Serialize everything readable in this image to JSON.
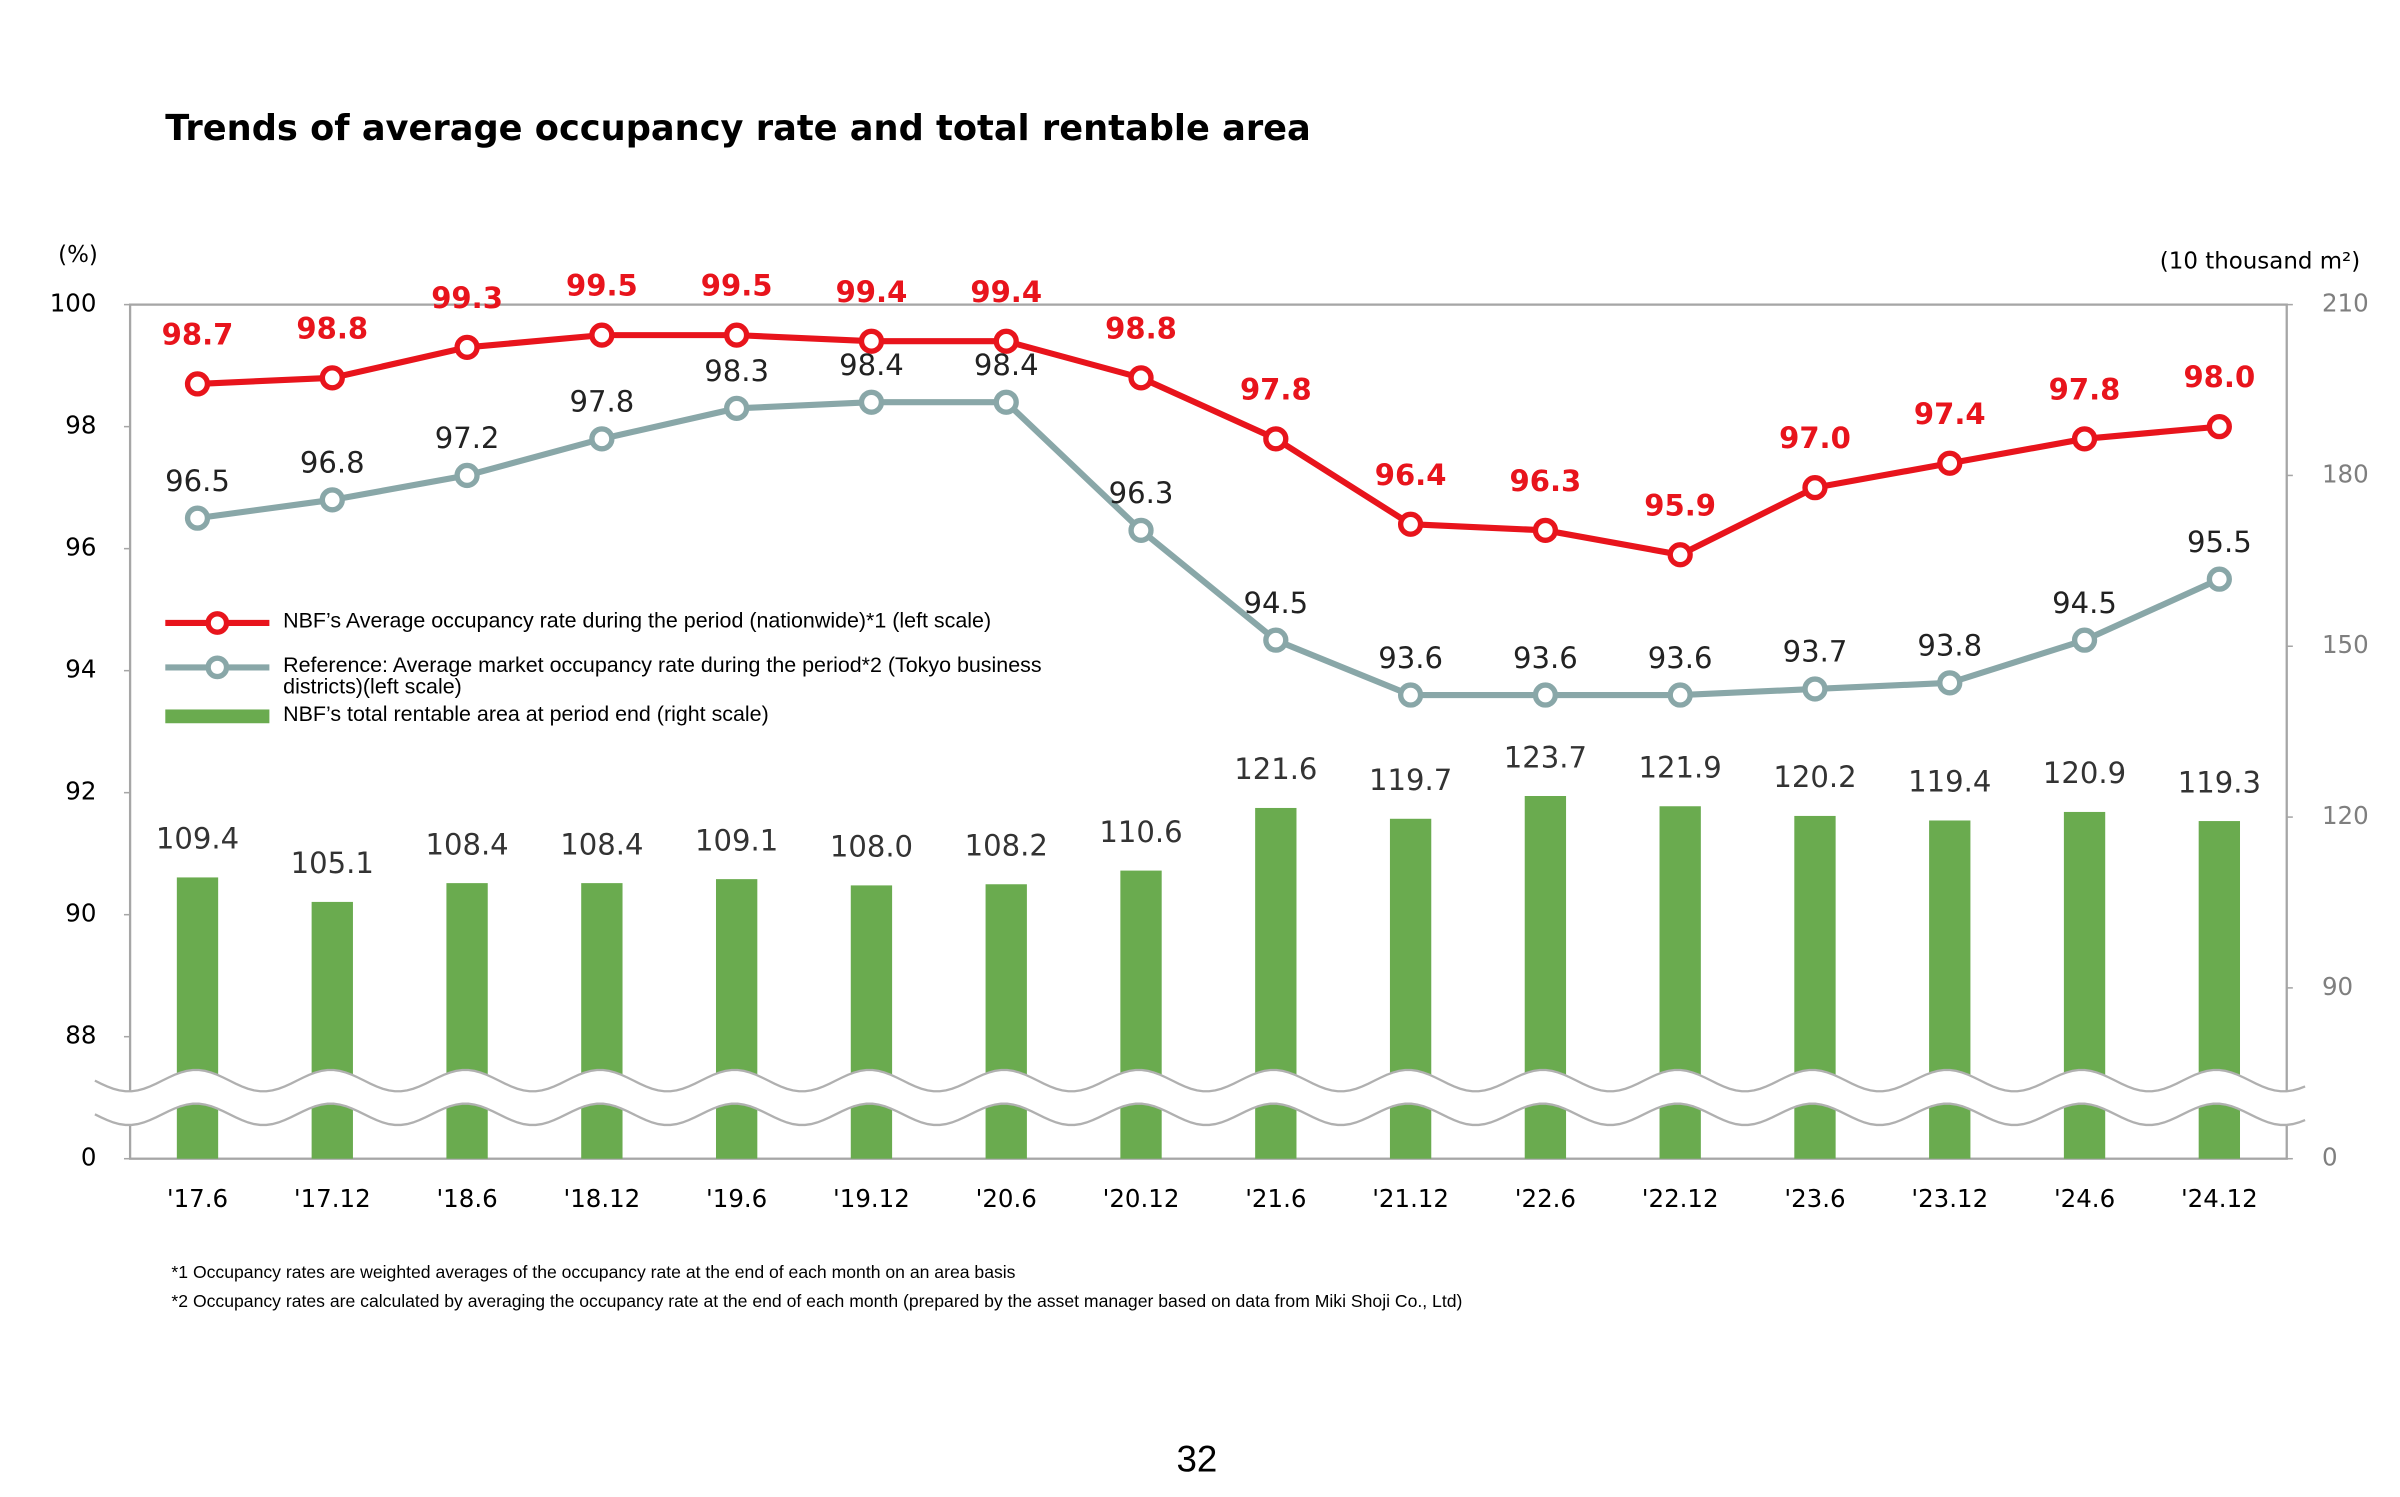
{
  "chart_data": {
    "type": "combo",
    "title": "Trends of average occupancy rate and total rentable area",
    "y_unit": "(%)",
    "y2_unit": "(10 thousand m²)",
    "categories": [
      "'17.6",
      "'17.12",
      "'18.6",
      "'18.12",
      "'19.6",
      "'19.12",
      "'20.6",
      "'20.12",
      "'21.6",
      "'21.12",
      "'22.6",
      "'22.12",
      "'23.6",
      "'23.12",
      "'24.6",
      "'24.12"
    ],
    "ylim": [
      0,
      100
    ],
    "yticks": [
      0,
      88,
      90,
      92,
      94,
      96,
      98,
      100
    ],
    "y2lim": [
      0,
      210
    ],
    "y2ticks": [
      0,
      90,
      120,
      150,
      180,
      210
    ],
    "axis_break": true,
    "series": [
      {
        "name": "NBF’s Average occupancy rate during the period (nationwide)*1  (left scale)",
        "type": "line",
        "color": "#e8141c",
        "values": [
          98.7,
          98.8,
          99.3,
          99.5,
          99.5,
          99.4,
          99.4,
          98.8,
          97.8,
          96.4,
          96.3,
          95.9,
          97.0,
          97.4,
          97.8,
          98.0
        ],
        "value_labels": [
          "98.7",
          "98.8",
          "99.3",
          "99.5",
          "99.5",
          "99.4",
          "99.4",
          "98.8",
          "97.8",
          "96.4",
          "96.3",
          "95.9",
          "97.0",
          "97.4",
          "97.8",
          "98.0"
        ]
      },
      {
        "name": "Reference: Average market occupancy rate during the period*2 (Tokyo business districts)(left scale)",
        "type": "line",
        "color": "#89a7a8",
        "values": [
          96.5,
          96.8,
          97.2,
          97.8,
          98.3,
          98.4,
          98.4,
          96.3,
          94.5,
          93.6,
          93.6,
          93.6,
          93.7,
          93.8,
          94.5,
          95.5
        ],
        "value_labels": [
          "96.5",
          "96.8",
          "97.2",
          "97.8",
          "98.3",
          "98.4",
          "98.4",
          "96.3",
          "94.5",
          "93.6",
          "93.6",
          "93.6",
          "93.7",
          "93.8",
          "94.5",
          "95.5"
        ]
      },
      {
        "name": "NBF’s total rentable area at period end (right scale)",
        "type": "bar",
        "axis": "y2",
        "color": "#6aab4f",
        "values": [
          109.4,
          105.1,
          108.4,
          108.4,
          109.1,
          108.0,
          108.2,
          110.6,
          121.6,
          119.7,
          123.7,
          121.9,
          120.2,
          119.4,
          120.9,
          119.3
        ],
        "value_labels": [
          "109.4",
          "105.1",
          "108.4",
          "108.4",
          "109.1",
          "108.0",
          "108.2",
          "110.6",
          "121.6",
          "119.7",
          "123.7",
          "121.9",
          "120.2",
          "119.4",
          "120.9",
          "119.3"
        ]
      }
    ]
  },
  "footnotes": [
    "*1 Occupancy rates are weighted averages of the occupancy rate at the end of each month on an area basis",
    "*2 Occupancy rates are calculated by averaging the occupancy rate at the end of each month (prepared by the asset manager based on data from Miki Shoji Co., Ltd)"
  ],
  "page_number": "32"
}
